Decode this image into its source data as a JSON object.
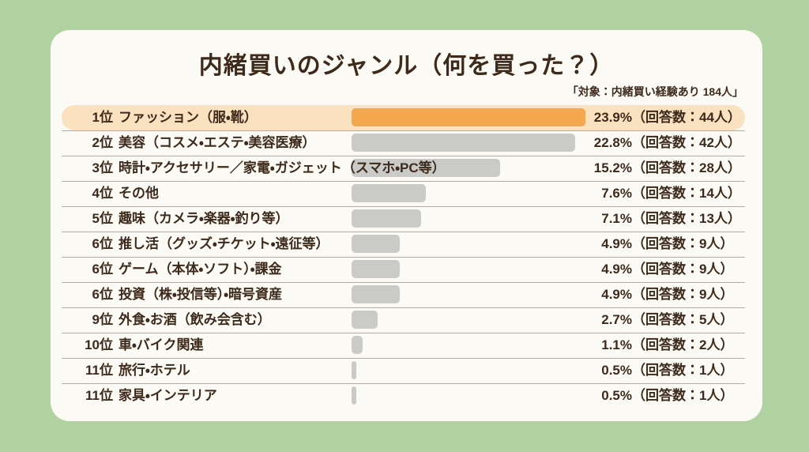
{
  "page": {
    "background_color": "#AFD2A0",
    "card_color": "#FBFAF5",
    "ink_color": "#3D2A1B",
    "rule_color": "#AEACA7"
  },
  "header": {
    "title": "内緒買いのジャンル（何を買った？）",
    "note": "「対象：内緒買い経験あり 184人」"
  },
  "chart": {
    "colors": {
      "highlight_pill": "#FAE2C1",
      "bar_highlight": "#F3A74F",
      "bar_default": "#CACAC8"
    },
    "rows": [
      {
        "rank": "1位",
        "label": "ファッション（服・靴）",
        "pct_value": 23.9,
        "pct_label": "23.9%",
        "count_label": "（回答数：44人）",
        "highlighted": true
      },
      {
        "rank": "2位",
        "label": "美容（コスメ・エステ・美容医療）",
        "pct_value": 22.8,
        "pct_label": "22.8%",
        "count_label": "（回答数：42人）",
        "highlighted": false
      },
      {
        "rank": "3位",
        "label": "時計・アクセサリー／家電・ガジェット（スマホ・PC等）",
        "pct_value": 15.2,
        "pct_label": "15.2%",
        "count_label": "（回答数：28人）",
        "highlighted": false
      },
      {
        "rank": "4位",
        "label": "その他",
        "pct_value": 7.6,
        "pct_label": "7.6%",
        "count_label": "（回答数：14人）",
        "highlighted": false
      },
      {
        "rank": "5位",
        "label": "趣味（カメラ・楽器・釣り等）",
        "pct_value": 7.1,
        "pct_label": "7.1%",
        "count_label": "（回答数：13人）",
        "highlighted": false
      },
      {
        "rank": "6位",
        "label": "推し活（グッズ・チケット・遠征等）",
        "pct_value": 4.9,
        "pct_label": "4.9%",
        "count_label": "（回答数：9人）",
        "highlighted": false
      },
      {
        "rank": "6位",
        "label": "ゲーム（本体・ソフト）・課金",
        "pct_value": 4.9,
        "pct_label": "4.9%",
        "count_label": "（回答数：9人）",
        "highlighted": false
      },
      {
        "rank": "6位",
        "label": "投資（株・投信等）・暗号資産",
        "pct_value": 4.9,
        "pct_label": "4.9%",
        "count_label": "（回答数：9人）",
        "highlighted": false
      },
      {
        "rank": "9位",
        "label": "外食・お酒（飲み会含む）",
        "pct_value": 2.7,
        "pct_label": "2.7%",
        "count_label": "（回答数：5人）",
        "highlighted": false
      },
      {
        "rank": "10位",
        "label": "車・バイク関連",
        "pct_value": 1.1,
        "pct_label": "1.1%",
        "count_label": "（回答数：2人）",
        "highlighted": false
      },
      {
        "rank": "11位",
        "label": "旅行・ホテル",
        "pct_value": 0.5,
        "pct_label": "0.5%",
        "count_label": "（回答数：1人）",
        "highlighted": false
      },
      {
        "rank": "11位",
        "label": "家具・インテリア",
        "pct_value": 0.5,
        "pct_label": "0.5%",
        "count_label": "（回答数：1人）",
        "highlighted": false
      }
    ]
  },
  "chart_data": {
    "type": "bar",
    "orientation": "horizontal",
    "title": "内緒買いのジャンル（何を買った？）",
    "subtitle": "「対象：内緒買い経験あり 184人」",
    "categories": [
      "ファッション（服・靴）",
      "美容（コスメ・エステ・美容医療）",
      "時計・アクセサリー／家電・ガジェット（スマホ・PC等）",
      "その他",
      "趣味（カメラ・楽器・釣り等）",
      "推し活（グッズ・チケット・遠征等）",
      "ゲーム（本体・ソフト）・課金",
      "投資（株・投信等）・暗号資産",
      "外食・お酒（飲み会含む）",
      "車・バイク関連",
      "旅行・ホテル",
      "家具・インテリア"
    ],
    "ranks": [
      "1位",
      "2位",
      "3位",
      "4位",
      "5位",
      "6位",
      "6位",
      "6位",
      "9位",
      "10位",
      "11位",
      "11位"
    ],
    "values": [
      23.9,
      22.8,
      15.2,
      7.6,
      7.1,
      4.9,
      4.9,
      4.9,
      2.7,
      1.1,
      0.5,
      0.5
    ],
    "counts": [
      44,
      42,
      28,
      14,
      13,
      9,
      9,
      9,
      5,
      2,
      1,
      1
    ],
    "value_unit": "%",
    "sample_size": 184,
    "xlim": [
      0,
      25
    ],
    "grid": false,
    "legend": false,
    "highlight_index": 0,
    "highlight_color": "#F3A74F",
    "bar_color": "#CACAC8"
  }
}
